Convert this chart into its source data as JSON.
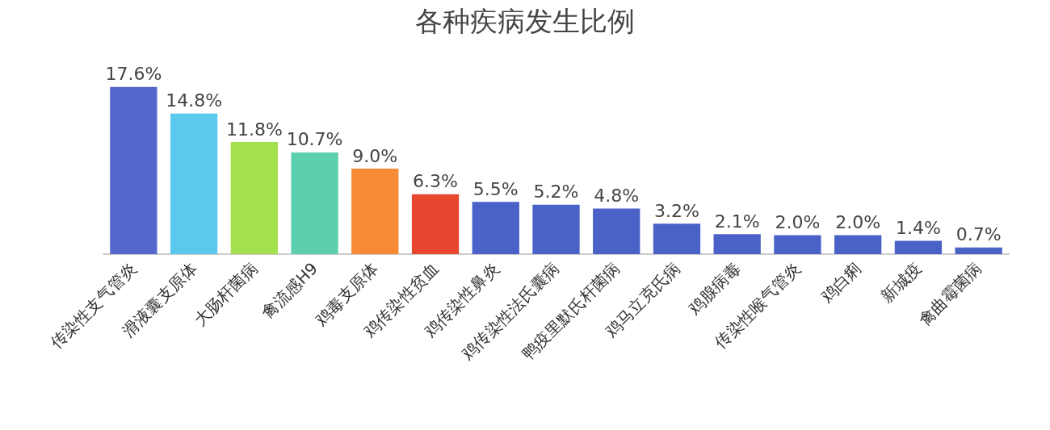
{
  "chart_data": {
    "type": "bar",
    "title": "各种疾病发生比例",
    "categories": [
      "传染性支气管炎",
      "滑液囊支原体",
      "大肠杆菌病",
      "禽流感H9",
      "鸡毒支原体",
      "鸡传染性贫血",
      "鸡传染性鼻炎",
      "鸡传染性法氏囊病",
      "鸭疫里默氏杆菌病",
      "鸡马立克氏病",
      "鸡腺病毒",
      "传染性喉气管炎",
      "鸡白痢",
      "新城疫",
      "禽曲霉菌病"
    ],
    "values": [
      17.6,
      14.8,
      11.8,
      10.7,
      9.0,
      6.3,
      5.5,
      5.2,
      4.8,
      3.2,
      2.1,
      2.0,
      2.0,
      1.4,
      0.7
    ],
    "value_labels": [
      "17.6%",
      "14.8%",
      "11.8%",
      "10.7%",
      "9.0%",
      "6.3%",
      "5.5%",
      "5.2%",
      "4.8%",
      "3.2%",
      "2.1%",
      "2.0%",
      "2.0%",
      "1.4%",
      "0.7%"
    ],
    "colors": [
      "#5566cc",
      "#5bc8ee",
      "#a3e04e",
      "#5cd0ae",
      "#f78a35",
      "#e8472f",
      "#4a62c8",
      "#4a62c8",
      "#4a62c8",
      "#4a62c8",
      "#4a62c8",
      "#4a62c8",
      "#4a62c8",
      "#4a62c8",
      "#4a62c8"
    ],
    "tick_labels": "x"
  }
}
